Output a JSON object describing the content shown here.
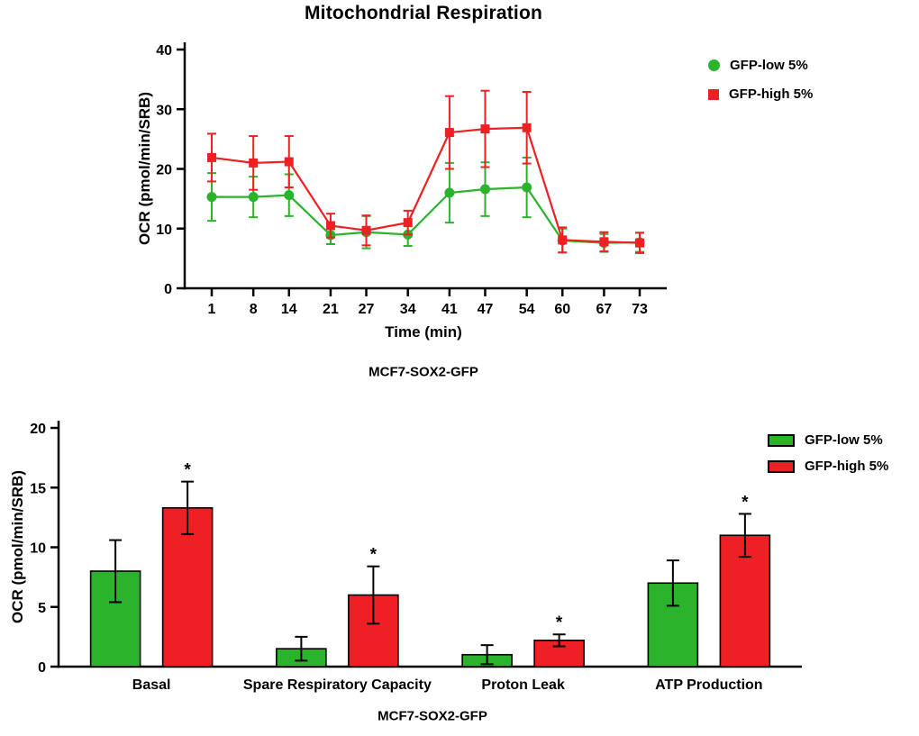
{
  "colors": {
    "green": "#2bb32b",
    "red": "#ee2024",
    "axis": "#000000",
    "background": "#ffffff"
  },
  "chart_data": [
    {
      "type": "line",
      "title": "Mitochondrial Respiration",
      "xlabel": "Time (min)",
      "ylabel": "OCR (pmol/min/SRB)",
      "caption": "MCF7-SOX2-GFP",
      "x": [
        1,
        8,
        14,
        21,
        27,
        34,
        41,
        47,
        54,
        60,
        67,
        73
      ],
      "ylim": [
        0,
        40
      ],
      "yticks": [
        0,
        10,
        20,
        30,
        40
      ],
      "grid": false,
      "legend_position": "top-right",
      "series": [
        {
          "name": "GFP-low 5%",
          "color_key": "green",
          "marker": "circle",
          "values": [
            15.3,
            15.3,
            15.6,
            8.9,
            9.4,
            9.0,
            16.0,
            16.6,
            16.9,
            8.0,
            7.6,
            7.7
          ],
          "errors": [
            4.0,
            3.4,
            3.5,
            1.5,
            2.7,
            1.9,
            5.0,
            4.5,
            5.0,
            2.0,
            1.5,
            1.6
          ]
        },
        {
          "name": "GFP-high 5%",
          "color_key": "red",
          "marker": "square",
          "values": [
            21.9,
            21.0,
            21.2,
            10.5,
            9.7,
            11.0,
            26.1,
            26.7,
            26.9,
            8.1,
            7.8,
            7.6
          ],
          "errors": [
            4.0,
            4.5,
            4.3,
            2.0,
            2.5,
            2.0,
            6.1,
            6.4,
            6.0,
            2.1,
            1.6,
            1.7
          ]
        }
      ]
    },
    {
      "type": "bar",
      "title": "",
      "xlabel": "",
      "ylabel": "OCR (pmol/min/SRB)",
      "caption": "MCF7-SOX2-GFP",
      "categories": [
        "Basal",
        "Spare Respiratory Capacity",
        "Proton Leak",
        "ATP Production"
      ],
      "ylim": [
        0,
        20
      ],
      "yticks": [
        0,
        5,
        10,
        15,
        20
      ],
      "grid": false,
      "legend_position": "top-right",
      "series": [
        {
          "name": "GFP-low 5%",
          "color_key": "green",
          "values": [
            8.0,
            1.5,
            1.0,
            7.0
          ],
          "errors": [
            2.6,
            1.0,
            0.8,
            1.9
          ],
          "significance": [
            "",
            "",
            "",
            ""
          ]
        },
        {
          "name": "GFP-high 5%",
          "color_key": "red",
          "values": [
            13.3,
            6.0,
            2.2,
            11.0
          ],
          "errors": [
            2.2,
            2.4,
            0.5,
            1.8
          ],
          "significance": [
            "*",
            "*",
            "*",
            "*"
          ]
        }
      ]
    }
  ]
}
